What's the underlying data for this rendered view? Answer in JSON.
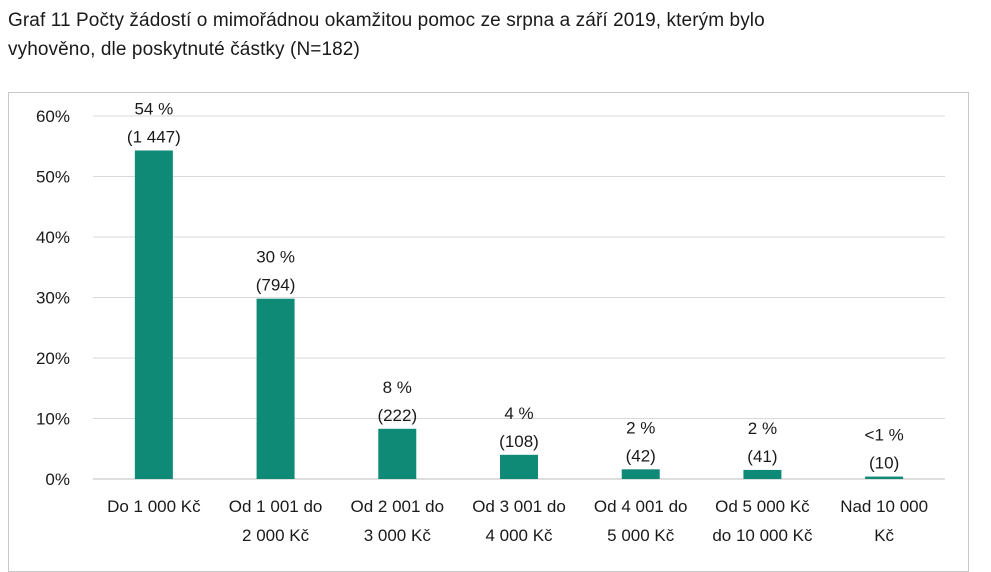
{
  "chart_data": {
    "type": "bar",
    "title": "Graf 11 Počty žádostí o mimořádnou okamžitou pomoc ze srpna a září 2019, kterým bylo vyhověno, dle poskytnuté částky (N=182)",
    "title_lines": [
      "Graf 11 Počty žádostí o mimořádnou okamžitou pomoc ze srpna a září 2019, kterým bylo",
      "vyhověno, dle poskytnuté částky (N=182)"
    ],
    "xlabel": "",
    "ylabel": "",
    "ylim": [
      0,
      60
    ],
    "yticks": [
      "0%",
      "10%",
      "20%",
      "30%",
      "40%",
      "50%",
      "60%"
    ],
    "grid": true,
    "legend": "none",
    "bar_color": "#0e8a77",
    "categories": [
      [
        "Do 1 000 Kč"
      ],
      [
        "Od 1 001 do",
        "2 000 Kč"
      ],
      [
        "Od 2 001 do",
        "3 000 Kč"
      ],
      [
        "Od 3 001 do",
        "4 000 Kč"
      ],
      [
        "Od 4 001 do",
        "5 000 Kč"
      ],
      [
        "Od 5 000 Kč",
        "do 10 000 Kč"
      ],
      [
        "Nad 10 000",
        "Kč"
      ]
    ],
    "values": [
      54.3,
      29.8,
      8.3,
      4.0,
      1.6,
      1.5,
      0.4
    ],
    "data_labels": [
      [
        "54 %",
        "(1 447)"
      ],
      [
        "30 %",
        "(794)"
      ],
      [
        "8 %",
        "(222)"
      ],
      [
        "4 %",
        "(108)"
      ],
      [
        "2 %",
        "(42)"
      ],
      [
        "2  %",
        "(41)"
      ],
      [
        "<1 %",
        "(10)"
      ]
    ]
  }
}
